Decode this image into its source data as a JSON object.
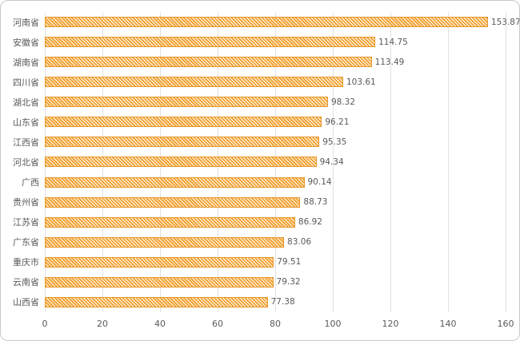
{
  "card": {
    "background_color": "#FFFFFF",
    "border_color": "#C9C9C9"
  },
  "chart_data": {
    "type": "bar",
    "orientation": "horizontal",
    "title": "",
    "xlabel": "",
    "ylabel": "",
    "categories": [
      "河南省",
      "安徽省",
      "湖南省",
      "四川省",
      "湖北省",
      "山东省",
      "江西省",
      "河北省",
      "广西",
      "贵州省",
      "江苏省",
      "广东省",
      "重庆市",
      "云南省",
      "山西省"
    ],
    "values": [
      153.87,
      114.75,
      113.49,
      103.61,
      98.32,
      96.21,
      95.35,
      94.34,
      90.14,
      88.73,
      86.92,
      83.06,
      79.51,
      79.32,
      77.38
    ],
    "value_labels": [
      "153.87",
      "114.75",
      "113.49",
      "103.61",
      "98.32",
      "96.21",
      "95.35",
      "94.34",
      "90.14",
      "88.73",
      "86.92",
      "83.06",
      "79.51",
      "79.32",
      "77.38"
    ],
    "xlim": [
      0,
      160
    ],
    "x_ticks": [
      0,
      20,
      40,
      60,
      80,
      100,
      120,
      140,
      160
    ],
    "grid": true,
    "legend": false,
    "bar_style": {
      "fill_color": "#F1A334",
      "hatch": "diagonal-down",
      "hatch_color": "#FFFFFF",
      "border_color": "#E8962A"
    },
    "text_color": "#595959",
    "gridline_color": "#E2E2E2"
  }
}
